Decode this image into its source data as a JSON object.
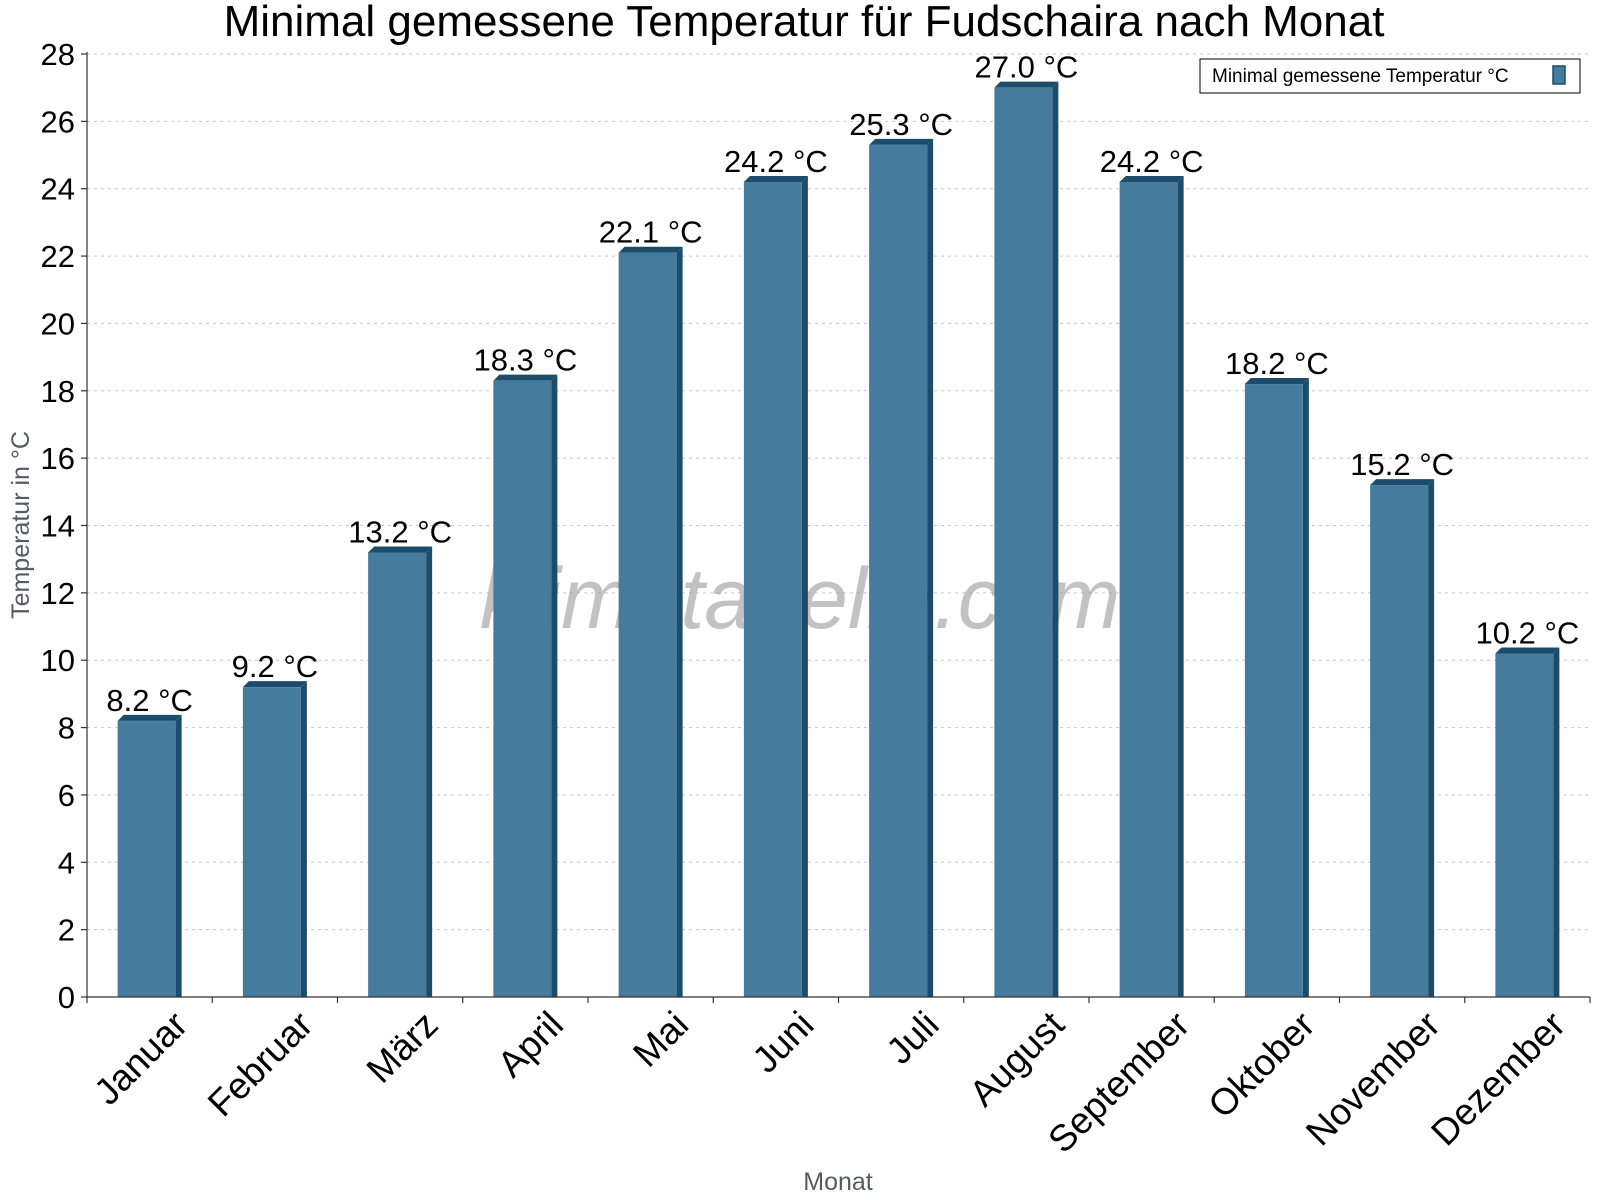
{
  "watermark": "klimatabelle.com",
  "colors": {
    "bar_face": "#457b9d",
    "bar_side": "#1d4c6b",
    "bar_top": "#1d4c6b",
    "axis": "#333333",
    "grid": "#c8c8c8"
  },
  "chart_data": {
    "type": "bar",
    "title": "Minimal gemessene Temperatur für Fudschaira nach Monat",
    "xlabel": "Monat",
    "ylabel": "Temperatur in °C",
    "ylim": [
      0,
      28
    ],
    "yticks": [
      0,
      2,
      4,
      6,
      8,
      10,
      12,
      14,
      16,
      18,
      20,
      22,
      24,
      26,
      28
    ],
    "grid": true,
    "legend_position": "top-right",
    "categories": [
      "Januar",
      "Februar",
      "März",
      "April",
      "Mai",
      "Juni",
      "Juli",
      "August",
      "September",
      "Oktober",
      "November",
      "Dezember"
    ],
    "series": [
      {
        "name": "Minimal gemessene Temperatur °C",
        "values": [
          8.2,
          9.2,
          13.2,
          18.3,
          22.1,
          24.2,
          25.3,
          27.0,
          24.2,
          18.2,
          15.2,
          10.2
        ],
        "labels": [
          "8.2 °C",
          "9.2 °C",
          "13.2 °C",
          "18.3 °C",
          "22.1 °C",
          "24.2 °C",
          "25.3 °C",
          "27.0 °C",
          "24.2 °C",
          "18.2 °C",
          "15.2 °C",
          "10.2 °C"
        ]
      }
    ]
  }
}
